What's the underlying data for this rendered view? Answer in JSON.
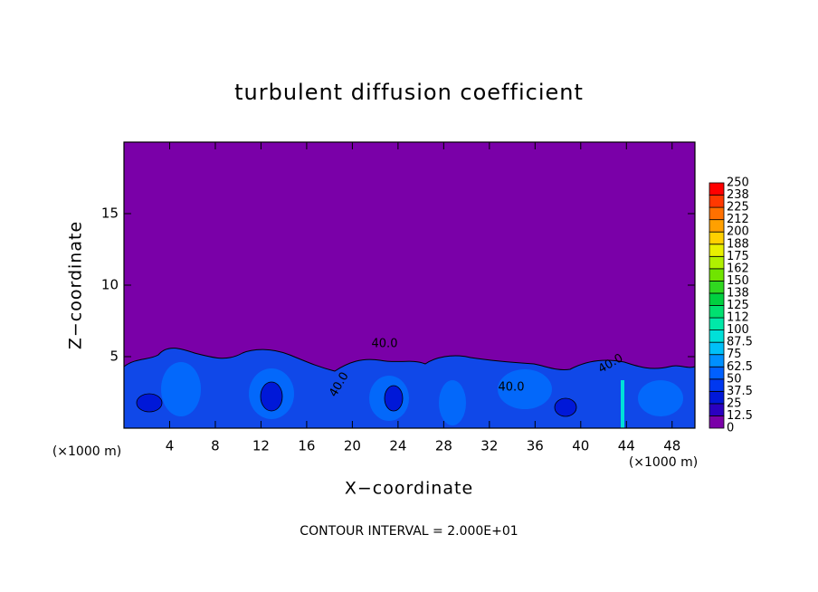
{
  "chart_data": {
    "type": "contour",
    "title": "turbulent diffusion coefficient",
    "xlabel": "X−coordinate",
    "ylabel": "Z−coordinate",
    "x_unit_labels": [
      "(×1000 m)",
      "(×1000 m)"
    ],
    "footer": "CONTOUR INTERVAL = 2.000E+01",
    "contour_labels": [
      "40.0",
      "40.0",
      "40.0",
      "40.0"
    ],
    "xlim": [
      0,
      50
    ],
    "xticks": [
      4,
      8,
      12,
      16,
      20,
      24,
      28,
      32,
      36,
      40,
      44,
      48
    ],
    "ylim": [
      0,
      20
    ],
    "yticks": [
      5,
      10,
      15
    ],
    "colorbar": {
      "levels": [
        0,
        12.5,
        25,
        37.5,
        50,
        62.5,
        75,
        87.5,
        100,
        112,
        125,
        138,
        150,
        162,
        175,
        188,
        200,
        212,
        225,
        238,
        250
      ],
      "colors": [
        "#7a00a8",
        "#2a00c0",
        "#0018d8",
        "#0038f0",
        "#0060ff",
        "#0090ff",
        "#00c0f8",
        "#00e0d8",
        "#00e8a8",
        "#00e070",
        "#00d040",
        "#30d820",
        "#70e400",
        "#b0f000",
        "#e8f000",
        "#ffd000",
        "#ffa000",
        "#ff7000",
        "#ff3800",
        "#ff0000",
        "#f08080"
      ]
    }
  }
}
